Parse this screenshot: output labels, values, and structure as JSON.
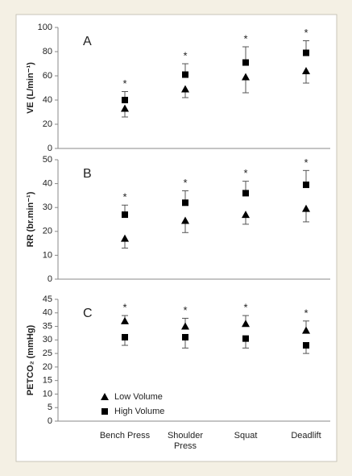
{
  "chart_data": [
    {
      "type": "scatter",
      "panel_label": "A",
      "ylabel": "VE (L/min⁻¹)",
      "ylim": [
        0,
        100
      ],
      "yticks": [
        0,
        20,
        40,
        60,
        80,
        100
      ],
      "annotations": [
        "*",
        "*",
        "*",
        "*"
      ],
      "series": [
        {
          "marker": "triangle",
          "color": "#000000",
          "error_direction": "down",
          "values": [
            33,
            49,
            59,
            64
          ],
          "errors": [
            7,
            7,
            13,
            10
          ]
        },
        {
          "marker": "square",
          "color": "#000000",
          "error_direction": "up",
          "values": [
            40,
            61,
            71,
            79
          ],
          "errors": [
            7,
            9,
            13,
            10
          ]
        }
      ]
    },
    {
      "type": "scatter",
      "panel_label": "B",
      "ylabel": "RR (br.min⁻¹)",
      "ylim": [
        0,
        50
      ],
      "yticks": [
        0,
        10,
        20,
        30,
        40,
        50
      ],
      "annotations": [
        "*",
        "*",
        "*",
        "*"
      ],
      "series": [
        {
          "marker": "triangle",
          "color": "#000000",
          "error_direction": "down",
          "values": [
            17,
            24.5,
            27,
            29.5
          ],
          "errors": [
            4,
            5,
            4,
            5.5
          ]
        },
        {
          "marker": "square",
          "color": "#000000",
          "error_direction": "up",
          "values": [
            27,
            32,
            36,
            39.5
          ],
          "errors": [
            4,
            5,
            5,
            6
          ]
        }
      ]
    },
    {
      "type": "scatter",
      "panel_label": "C",
      "ylabel": "PETCO₂ (mmHg)",
      "ylim": [
        0,
        45
      ],
      "yticks": [
        0,
        5,
        10,
        15,
        20,
        25,
        30,
        35,
        40,
        45
      ],
      "categories": [
        "Bench Press",
        "Shoulder Press",
        "Squat",
        "Deadlift"
      ],
      "annotations": [
        "*",
        "*",
        "*",
        "*"
      ],
      "legend": "lower left",
      "series": [
        {
          "name": "Low Volume",
          "marker": "triangle",
          "color": "#000000",
          "error_direction": "up",
          "values": [
            37,
            35,
            36,
            33.5
          ],
          "errors": [
            2,
            3,
            3,
            3.5
          ]
        },
        {
          "name": "High Volume",
          "marker": "square",
          "color": "#000000",
          "error_direction": "down",
          "values": [
            31,
            31,
            30.5,
            28
          ],
          "errors": [
            3,
            4,
            3.5,
            3
          ]
        }
      ]
    }
  ]
}
